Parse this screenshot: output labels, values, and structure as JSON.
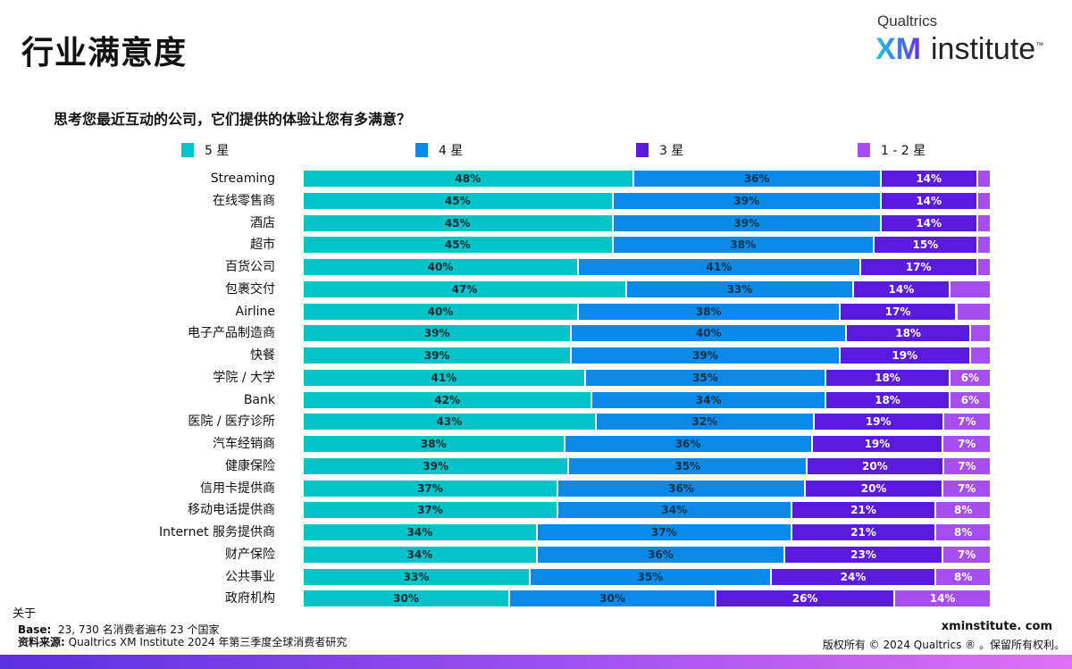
{
  "header": {
    "title": "行业满意度",
    "logo_top": "Qualtrics",
    "logo_xm": "XM",
    "logo_institute": "institute",
    "logo_tm": "™"
  },
  "chart_data": {
    "type": "bar",
    "orientation": "horizontal-stacked-100",
    "title": "思考您最近互动的公司，它们提供的体验让您有多满意？",
    "legend_position": "top",
    "series": [
      {
        "name": "5 星",
        "color": "#00c4c8"
      },
      {
        "name": "4 星",
        "color": "#0a8ae8"
      },
      {
        "name": "3 星",
        "color": "#5a1ae0"
      },
      {
        "name": "1 - 2 星",
        "color": "#a64ef0"
      }
    ],
    "categories": [
      "Streaming",
      "在线零售商",
      "酒店",
      "超市",
      "百货公司",
      "包裹交付",
      "Airline",
      "电子产品制造商",
      "快餐",
      "学院 / 大学",
      "Bank",
      "医院 / 医疗诊所",
      "汽车经销商",
      "健康保险",
      "信用卡提供商",
      "移动电话提供商",
      "Internet 服务提供商",
      "财产保险",
      "公共事业",
      "政府机构"
    ],
    "values": [
      [
        48,
        36,
        14,
        2
      ],
      [
        45,
        39,
        14,
        2
      ],
      [
        45,
        39,
        14,
        2
      ],
      [
        45,
        38,
        15,
        2
      ],
      [
        40,
        41,
        17,
        2
      ],
      [
        47,
        33,
        14,
        6
      ],
      [
        40,
        38,
        17,
        5
      ],
      [
        39,
        40,
        18,
        3
      ],
      [
        39,
        39,
        19,
        3
      ],
      [
        41,
        35,
        18,
        6
      ],
      [
        42,
        34,
        18,
        6
      ],
      [
        43,
        32,
        19,
        7
      ],
      [
        38,
        36,
        19,
        7
      ],
      [
        39,
        35,
        20,
        7
      ],
      [
        37,
        36,
        20,
        7
      ],
      [
        37,
        34,
        21,
        8
      ],
      [
        34,
        37,
        21,
        8
      ],
      [
        34,
        36,
        23,
        7
      ],
      [
        33,
        35,
        24,
        8
      ],
      [
        30,
        30,
        26,
        14
      ]
    ],
    "labels_shown": [
      [
        true,
        true,
        true,
        false
      ],
      [
        true,
        true,
        true,
        false
      ],
      [
        true,
        true,
        true,
        false
      ],
      [
        true,
        true,
        true,
        false
      ],
      [
        true,
        true,
        true,
        false
      ],
      [
        true,
        true,
        true,
        false
      ],
      [
        true,
        true,
        true,
        false
      ],
      [
        true,
        true,
        true,
        false
      ],
      [
        true,
        true,
        true,
        false
      ],
      [
        true,
        true,
        true,
        true
      ],
      [
        true,
        true,
        true,
        true
      ],
      [
        true,
        true,
        true,
        true
      ],
      [
        true,
        true,
        true,
        true
      ],
      [
        true,
        true,
        true,
        true
      ],
      [
        true,
        true,
        true,
        true
      ],
      [
        true,
        true,
        true,
        true
      ],
      [
        true,
        true,
        true,
        true
      ],
      [
        true,
        true,
        true,
        true
      ],
      [
        true,
        true,
        true,
        true
      ],
      [
        true,
        true,
        true,
        true
      ]
    ],
    "unit": "%"
  },
  "footer": {
    "about": "关于",
    "base_label": "Base:",
    "base_text": "23, 730 名消费者遍布 23 个国家",
    "source_label": "资料来源:",
    "source_text": "Qualtrics XM Institute 2024 年第三季度全球消费者研究",
    "site": "xminstitute. com",
    "copyright": "版权所有 © 2024 Qualtrics ® 。保留所有权利。"
  }
}
